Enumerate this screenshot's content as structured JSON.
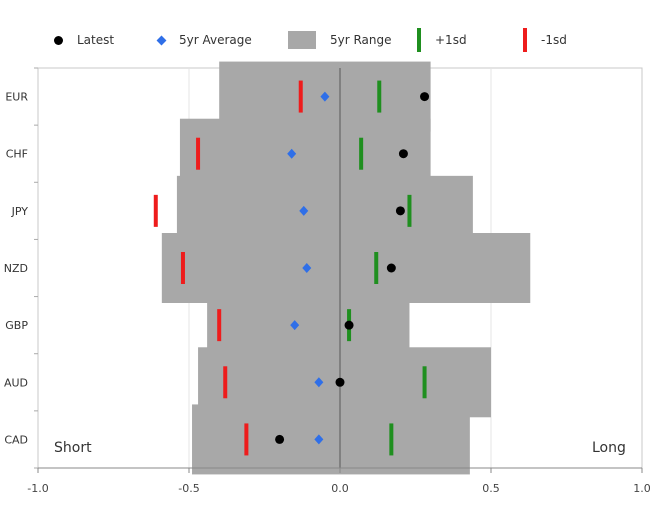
{
  "legend": {
    "latest": "Latest",
    "avg": "5yr Average",
    "range": "5yr Range",
    "plus1sd": "+1sd",
    "minus1sd": "-1sd"
  },
  "labels": {
    "short": "Short",
    "long": "Long"
  },
  "colors": {
    "range": "#a8a8a8",
    "latest": "#000000",
    "average": "#2f6fe8",
    "plus1sd": "#1f8f1f",
    "minus1sd": "#ee1c1c"
  },
  "chart_data": {
    "type": "range-dot",
    "orientation": "horizontal",
    "categories": [
      "EUR",
      "CHF",
      "JPY",
      "NZD",
      "GBP",
      "AUD",
      "CAD"
    ],
    "range_min": [
      -0.4,
      -0.53,
      -0.54,
      -0.59,
      -0.44,
      -0.47,
      -0.49
    ],
    "range_max": [
      0.3,
      0.3,
      0.44,
      0.63,
      0.23,
      0.5,
      0.43
    ],
    "latest": [
      0.28,
      0.21,
      0.2,
      0.17,
      0.03,
      0.0,
      -0.2
    ],
    "average": [
      -0.05,
      -0.16,
      -0.12,
      -0.11,
      -0.15,
      -0.07,
      -0.07
    ],
    "plus1sd": [
      0.13,
      0.07,
      0.23,
      0.12,
      0.03,
      0.28,
      0.17
    ],
    "minus1sd": [
      -0.13,
      -0.47,
      -0.61,
      -0.52,
      -0.4,
      -0.38,
      -0.31
    ],
    "xlim": [
      -1.0,
      1.0
    ],
    "xticks": [
      -1.0,
      -0.5,
      0.0,
      0.5,
      1.0
    ],
    "xtick_labels": [
      "-1.0",
      "-0.5",
      "0.0",
      "0.5",
      "1.0"
    ],
    "grid": true,
    "legend_position": "top",
    "title": "",
    "xlabel": "",
    "ylabel": ""
  }
}
